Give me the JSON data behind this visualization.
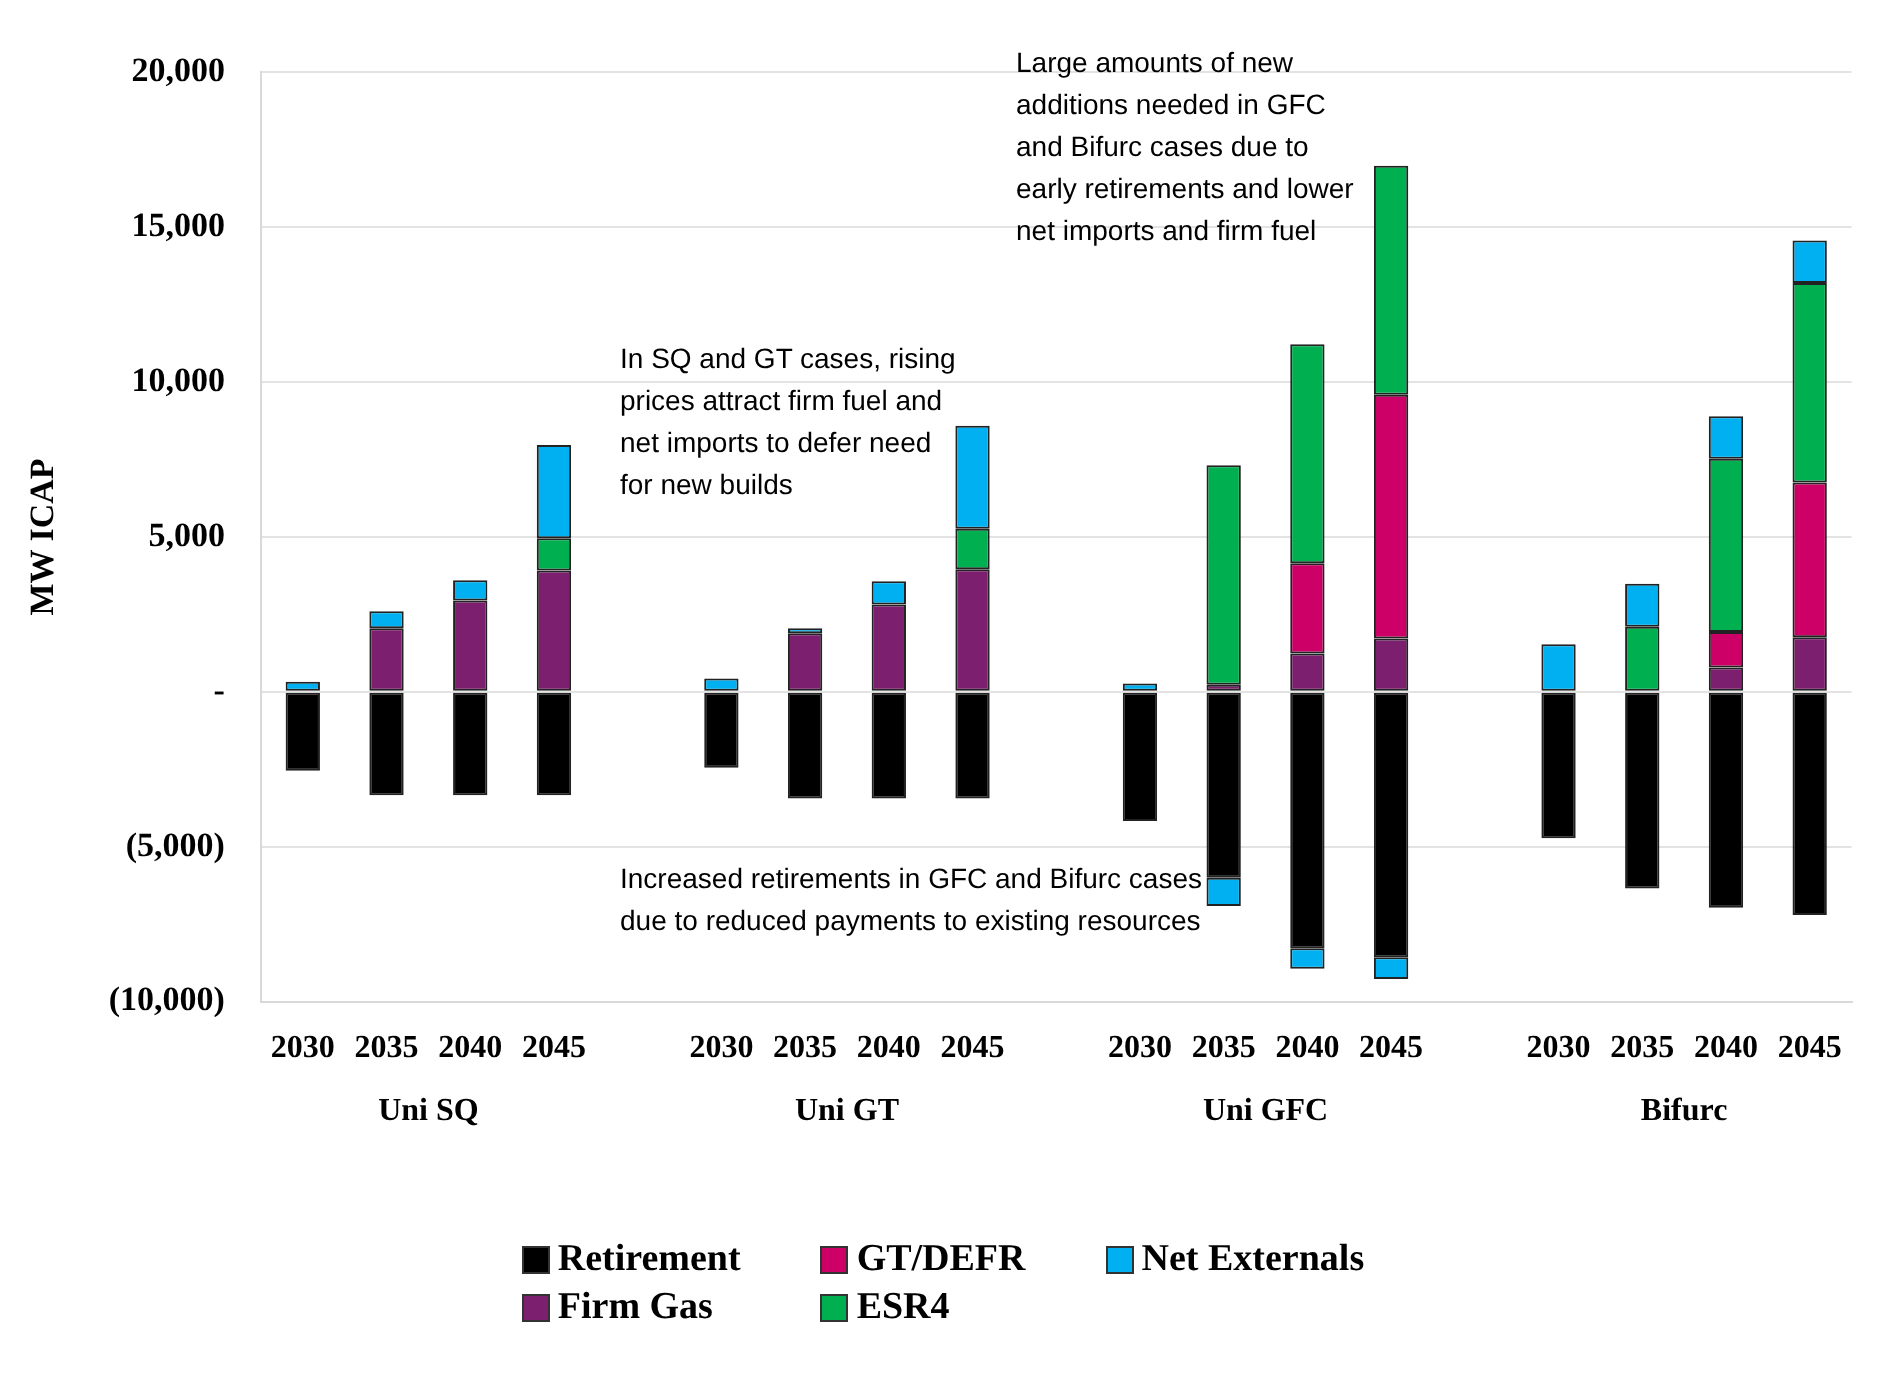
{
  "chart_data": {
    "type": "bar",
    "stacked": true,
    "ylabel": "MW ICAP",
    "categories": [
      "2030",
      "2035",
      "2040",
      "2045",
      null,
      "2030",
      "2035",
      "2040",
      "2045",
      null,
      "2030",
      "2035",
      "2040",
      "2045",
      null,
      "2030",
      "2035",
      "2040",
      "2045"
    ],
    "series": [
      {
        "name": "Retirement",
        "color": "#000000",
        "values": [
          -2550,
          -3340,
          -3340,
          -3340,
          null,
          -2450,
          -3440,
          -3440,
          -3440,
          null,
          -4170,
          -6000,
          -8280,
          -8570,
          null,
          -4730,
          -6350,
          -6970,
          -7200
        ]
      },
      {
        "name": "Firm Gas",
        "color": "#7b1f6e",
        "values": [
          0,
          2050,
          2950,
          3920,
          null,
          0,
          1890,
          2820,
          3960,
          null,
          0,
          230,
          1240,
          1720,
          null,
          0,
          0,
          790,
          1760
        ]
      },
      {
        "name": "GT/DEFR",
        "color": "#cc0066",
        "values": [
          0,
          0,
          0,
          0,
          null,
          0,
          0,
          0,
          0,
          null,
          0,
          0,
          2910,
          7870,
          null,
          0,
          0,
          1140,
          5000
        ]
      },
      {
        "name": "ESR4",
        "color": "#00b050",
        "values": [
          0,
          0,
          0,
          1040,
          null,
          0,
          0,
          0,
          1310,
          null,
          0,
          7090,
          7070,
          7400,
          null,
          0,
          2100,
          5600,
          6440
        ]
      },
      {
        "name": "Net Externals",
        "color": "#00b0f0",
        "values": [
          330,
          550,
          650,
          3010,
          null,
          430,
          160,
          750,
          3320,
          null,
          270,
          -910,
          -660,
          -700,
          null,
          1540,
          1390,
          1370,
          1370
        ]
      }
    ],
    "ylim": [
      -10000,
      20000
    ],
    "yticks": [
      {
        "value": -10000,
        "label": "(10,000)"
      },
      {
        "value": -5000,
        "label": "(5,000)"
      },
      {
        "value": 0,
        "label": "-"
      },
      {
        "value": 5000,
        "label": "5,000"
      },
      {
        "value": 10000,
        "label": "10,000"
      },
      {
        "value": 15000,
        "label": "15,000"
      },
      {
        "value": 20000,
        "label": "20,000"
      }
    ],
    "grid": "y",
    "legend": "bottom",
    "annotations": [
      "Uni SQ",
      "Uni GT",
      "Uni GFC",
      "Bifurc",
      "In SQ and GT cases, rising prices attract firm fuel and net imports to defer need for new builds",
      "Large amounts of new additions needed in GFC and Bifurc cases due to early retirements and lower net imports and firm fuel",
      "Increased retirements in GFC and Bifurc cases due to reduced payments to existing resources"
    ]
  }
}
